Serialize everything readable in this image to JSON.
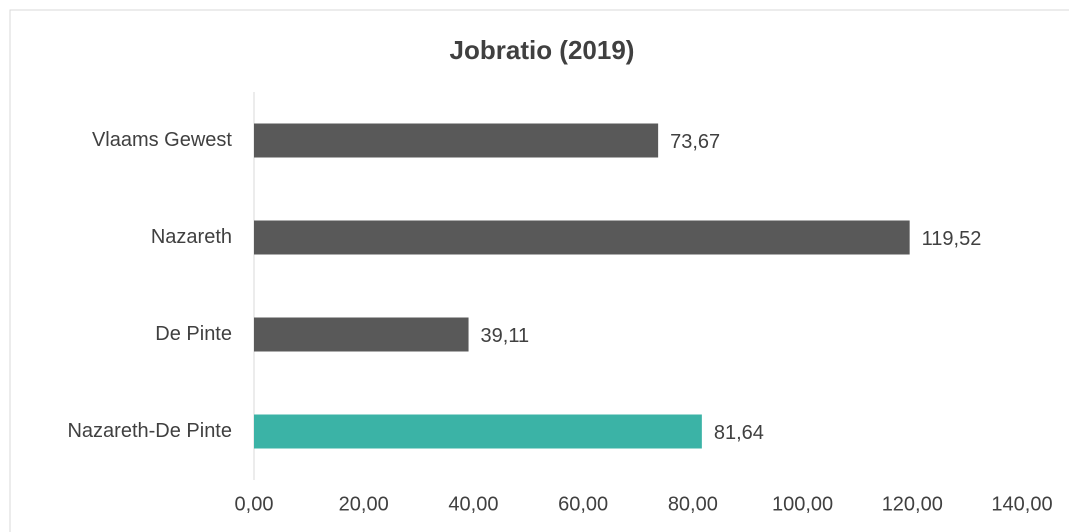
{
  "chart_data": {
    "type": "bar",
    "orientation": "horizontal",
    "title": "Jobratio (2019)",
    "categories": [
      "Vlaams Gewest",
      "Nazareth",
      "De Pinte",
      "Nazareth-De Pinte"
    ],
    "values": [
      73.67,
      119.52,
      39.11,
      81.64
    ],
    "value_labels": [
      "73,67",
      "119,52",
      "39,11",
      "81,64"
    ],
    "colors": [
      "#595959",
      "#595959",
      "#595959",
      "#3bb3a6"
    ],
    "xlim": [
      0,
      140
    ],
    "xticks": [
      {
        "value": 0,
        "label": "0,00"
      },
      {
        "value": 20,
        "label": "20,00"
      },
      {
        "value": 40,
        "label": "40,00"
      },
      {
        "value": 60,
        "label": "60,00"
      },
      {
        "value": 80,
        "label": "80,00"
      },
      {
        "value": 100,
        "label": "100,00"
      },
      {
        "value": 120,
        "label": "120,00"
      },
      {
        "value": 140,
        "label": "140,00"
      }
    ],
    "grid": false
  }
}
